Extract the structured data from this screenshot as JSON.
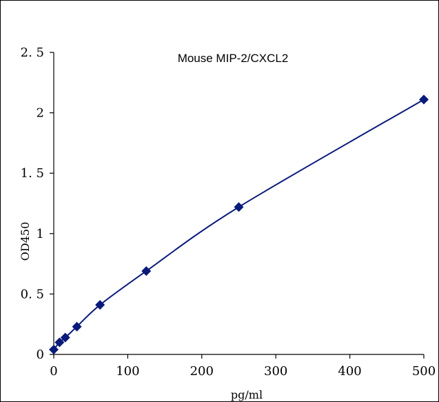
{
  "chart_data": {
    "type": "scatter",
    "title": "Mouse   MIP-2/CXCL2",
    "xlabel": "pg/ml",
    "ylabel": "OD450",
    "xlim": [
      0,
      500
    ],
    "ylim": [
      0,
      2.5
    ],
    "x_ticks": [
      "0",
      "100",
      "200",
      "300",
      "400",
      "500"
    ],
    "y_ticks": [
      "0",
      "0. 5",
      "1",
      "1. 5",
      "2",
      "2. 5"
    ],
    "grid": false,
    "legend": "none",
    "series": [
      {
        "marker": "diamond",
        "color": "#0a1a7a",
        "line": "smooth",
        "points": [
          {
            "x": 0,
            "y": 0.04
          },
          {
            "x": 7.8,
            "y": 0.1
          },
          {
            "x": 15.6,
            "y": 0.14
          },
          {
            "x": 31.25,
            "y": 0.23
          },
          {
            "x": 62.5,
            "y": 0.41
          },
          {
            "x": 125,
            "y": 0.69
          },
          {
            "x": 250,
            "y": 1.22
          },
          {
            "x": 500,
            "y": 2.11
          }
        ]
      }
    ]
  }
}
